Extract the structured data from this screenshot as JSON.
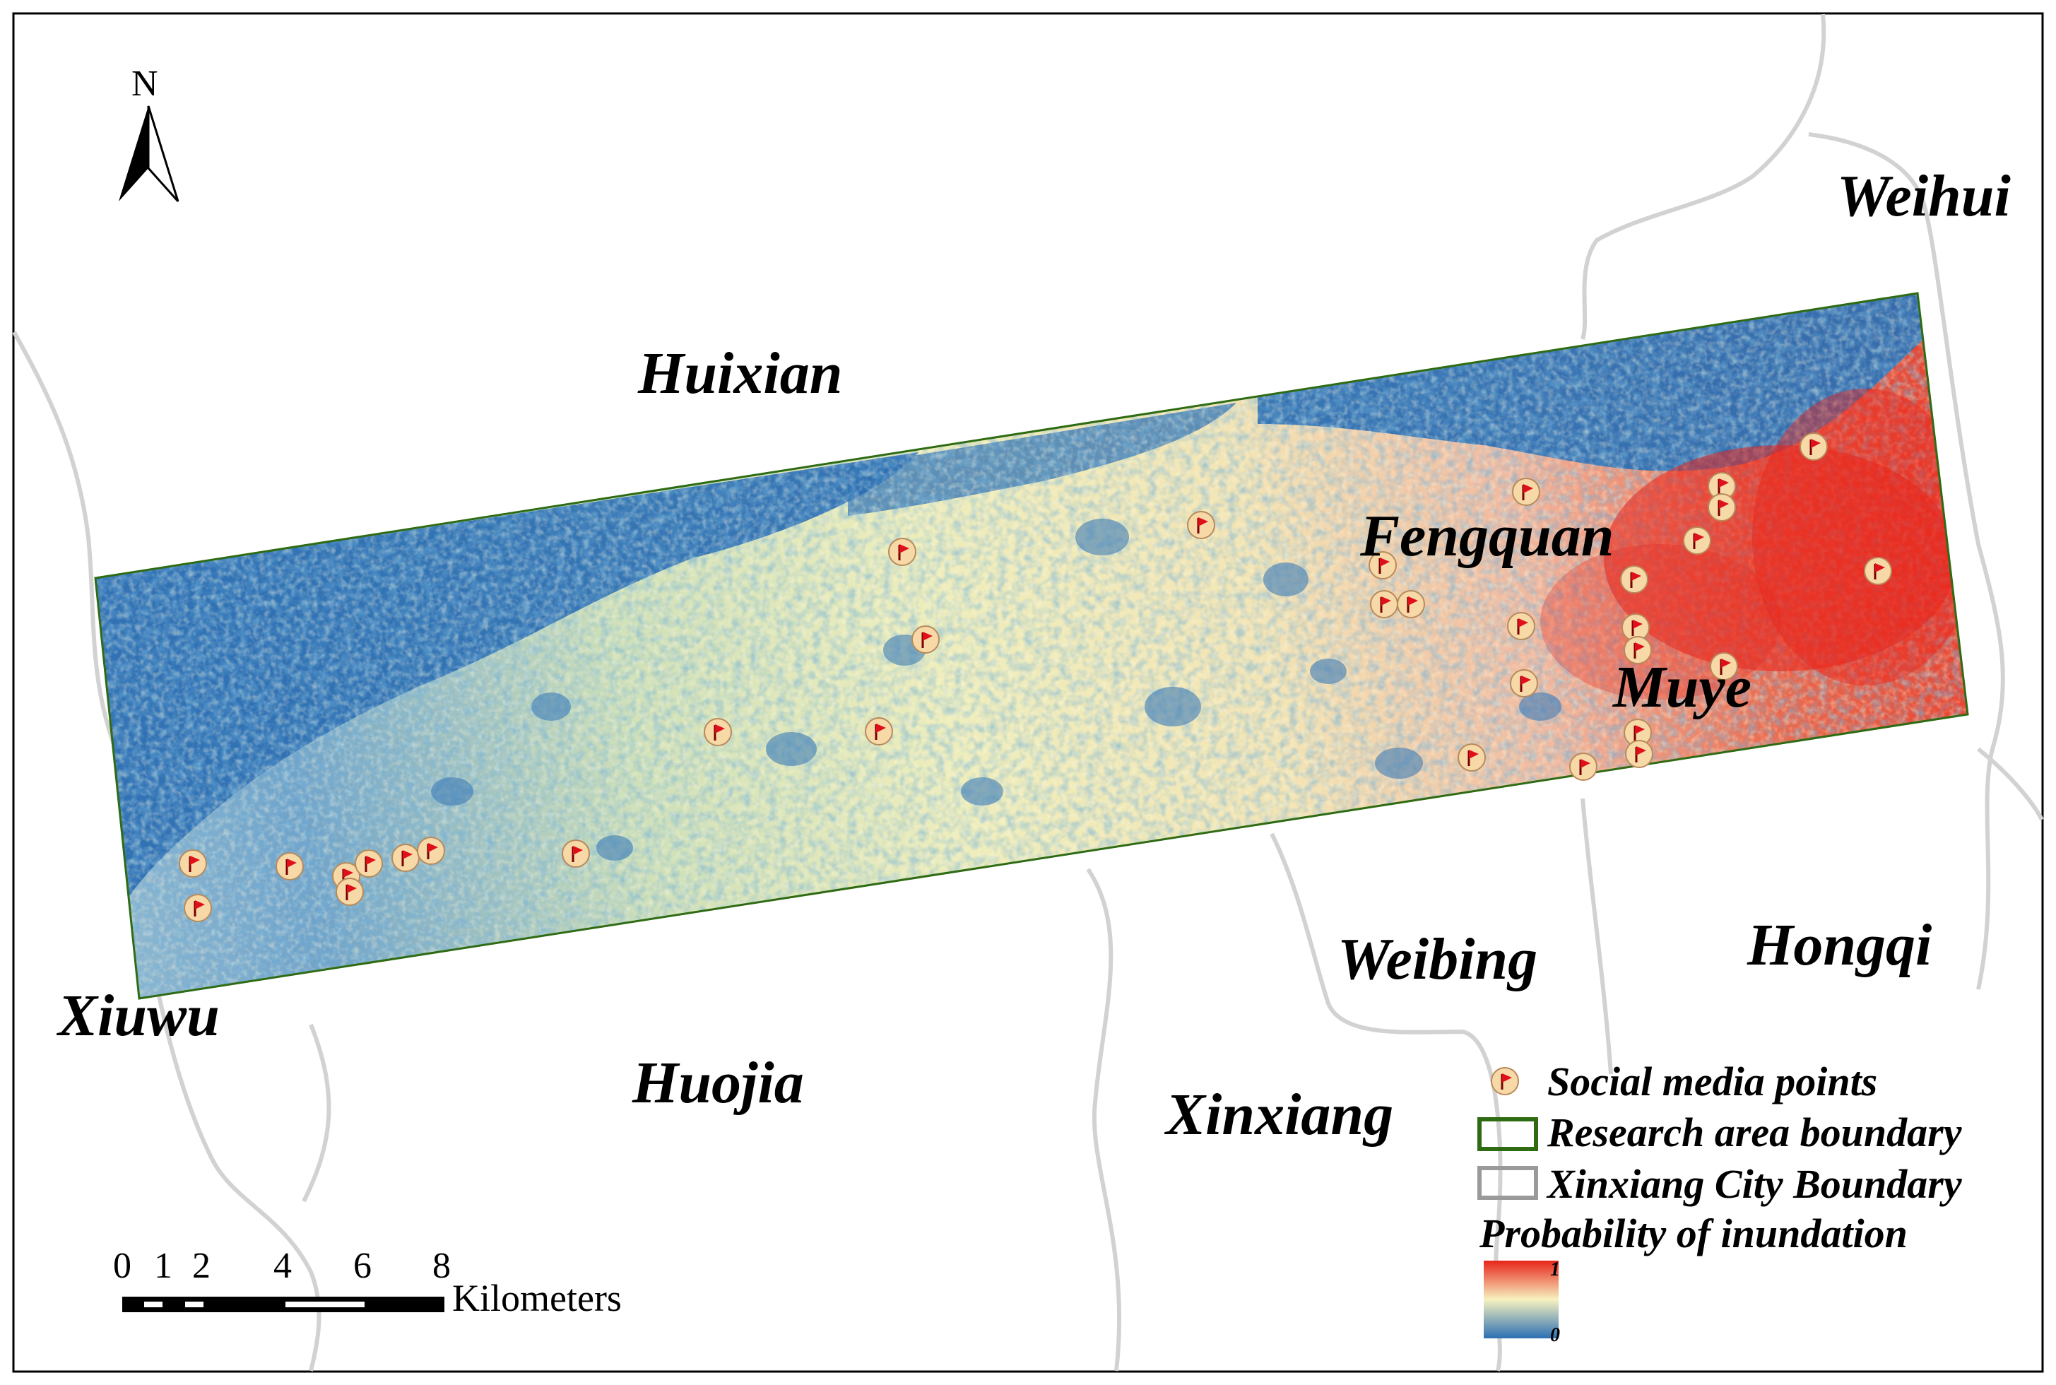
{
  "north_arrow": {
    "letter": "N"
  },
  "places": {
    "weihui": "Weihui",
    "huixian": "Huixian",
    "fengquan": "Fengquan",
    "muye": "Muye",
    "weibing": "Weibing",
    "hongqi": "Hongqi",
    "xiuwu": "Xiuwu",
    "huojia": "Huojia",
    "xinxiang": "Xinxiang"
  },
  "legend": {
    "social_media": "Social media points",
    "research_boundary": "Research area boundary",
    "city_boundary": "Xinxiang City Boundary",
    "probability_title": "Probability of inundation",
    "ramp_max": "1",
    "ramp_min": "0"
  },
  "scale_bar": {
    "ticks": [
      "0",
      "1",
      "2",
      "4",
      "6",
      "8"
    ],
    "unit": "Kilometers"
  },
  "colors": {
    "research_boundary": "#2e6b12",
    "city_boundary": "#cfcfcf",
    "low_prob": "#2c6fb3",
    "mid_prob": "#f7f2bf",
    "high_prob": "#e8241b",
    "marker_fill": "#f7d9a8",
    "marker_flag": "#e0101a"
  }
}
